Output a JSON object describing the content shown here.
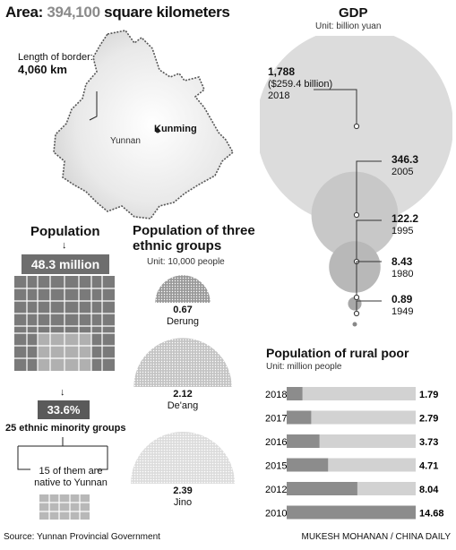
{
  "area": {
    "prefix": "Area: ",
    "value": "394,100",
    "suffix": " square kilometers"
  },
  "map": {
    "border_label": "Length of border:",
    "border_value": "4,060 km",
    "province": "Yunnan",
    "capital": "Kunming"
  },
  "population": {
    "title": "Population",
    "total": "48.3 million",
    "minority_share": "33.6%",
    "minority_groups": "25 ethnic minority groups",
    "native_note_line1": "15 of them are",
    "native_note_line2": "native to Yunnan",
    "arrow": "↓"
  },
  "ethnic": {
    "title": "Population of three ethnic groups",
    "unit": "Unit: 10,000 people",
    "groups": [
      {
        "name": "Derung",
        "value": "0.67",
        "num": 0.67
      },
      {
        "name": "De'ang",
        "value": "2.12",
        "num": 2.12
      },
      {
        "name": "Jino",
        "value": "2.39",
        "num": 2.39
      }
    ]
  },
  "chart_data": [
    {
      "type": "bubble",
      "title": "GDP",
      "subtitle": "Unit: billion yuan",
      "points": [
        {
          "year": "2018",
          "value": 1788,
          "label": "1,788",
          "note": "($259.4 billion)"
        },
        {
          "year": "2005",
          "value": 346.3,
          "label": "346.3"
        },
        {
          "year": "1995",
          "value": 122.2,
          "label": "122.2"
        },
        {
          "year": "1980",
          "value": 8.43,
          "label": "8.43"
        },
        {
          "year": "1949",
          "value": 0.89,
          "label": "0.89"
        }
      ],
      "colors": {
        "2018": "#dcdcdc",
        "2005": "#c8c8c8",
        "1995": "#b8b8b8",
        "1980": "#a8a8a8",
        "1949": "#888888"
      }
    },
    {
      "type": "bar",
      "orientation": "horizontal",
      "title": "Population of rural poor",
      "subtitle": "Unit: million people",
      "categories": [
        "2018",
        "2017",
        "2016",
        "2015",
        "2012",
        "2010"
      ],
      "values": [
        1.79,
        2.79,
        3.73,
        4.71,
        8.04,
        14.68
      ],
      "labels": [
        "1.79",
        "2.79",
        "3.73",
        "4.71",
        "8.04",
        "14.68"
      ],
      "xlim": [
        0,
        14.68
      ],
      "colors": {
        "bar": "#8c8c8c",
        "track": "#d2d2d2"
      }
    }
  ],
  "footer": {
    "source": "Source: Yunnan Provincial Government",
    "credit": "MUKESH MOHANAN / CHINA DAILY"
  }
}
